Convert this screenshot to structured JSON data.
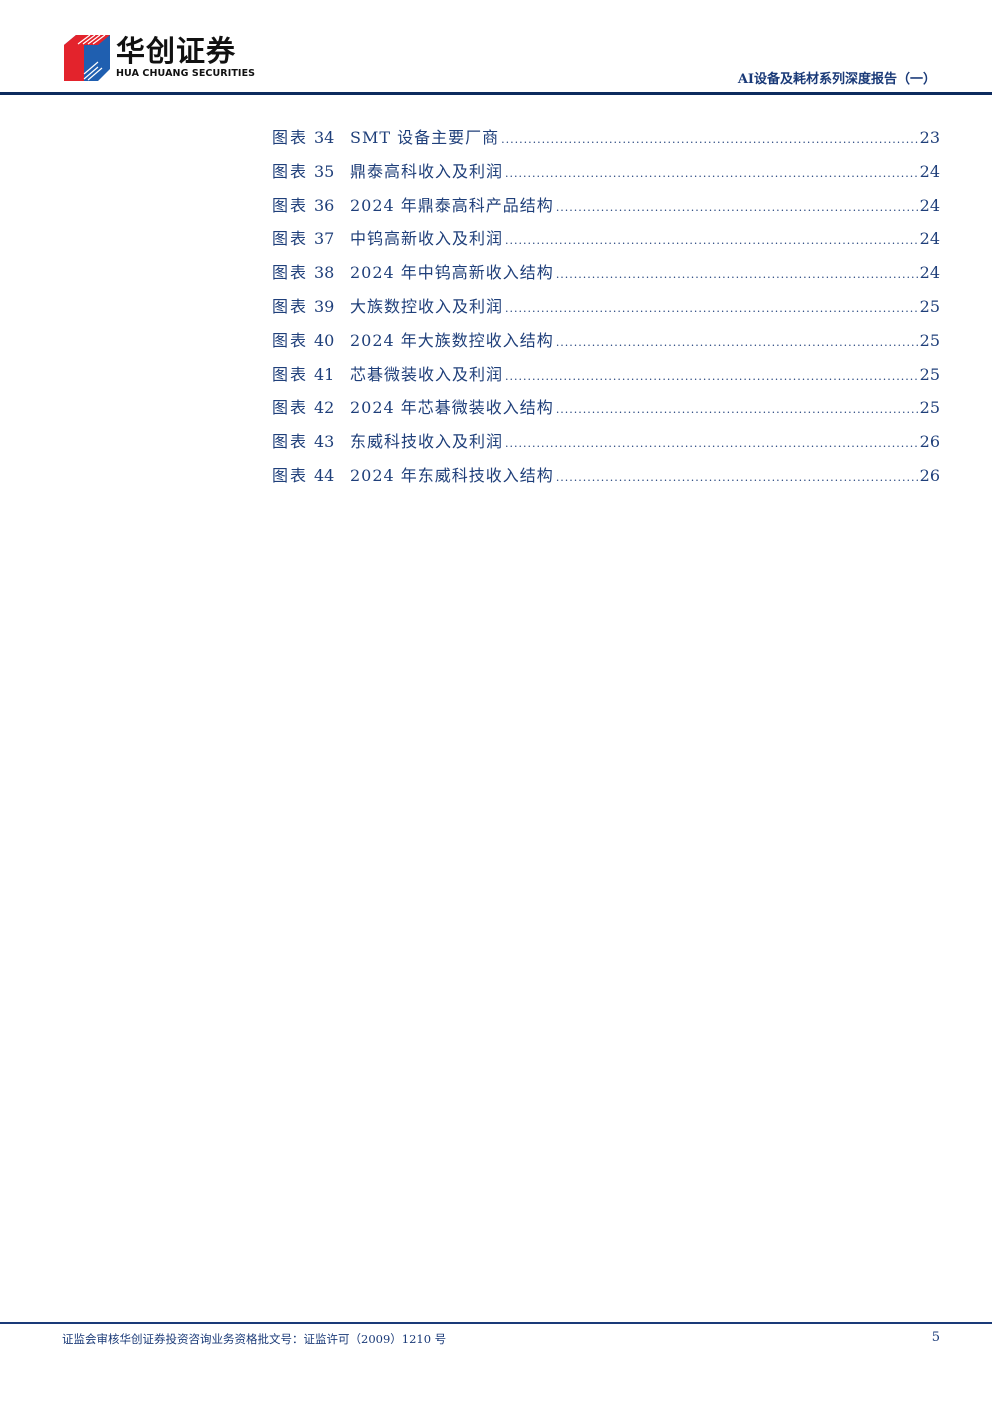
{
  "header": {
    "brand_cn": "华创证券",
    "brand_en": "HUA CHUANG SECURITIES",
    "report_title": "AI设备及耗材系列深度报告（一）",
    "colors": {
      "primary": "#0d2b5e",
      "text": "#1f3f7a",
      "logo_red": "#e3232c",
      "logo_blue": "#1f5fb0"
    }
  },
  "toc": [
    {
      "label": "图表",
      "num": "34",
      "title": "SMT 设备主要厂商",
      "page": "23"
    },
    {
      "label": "图表",
      "num": "35",
      "title": "鼎泰高科收入及利润",
      "page": "24"
    },
    {
      "label": "图表",
      "num": "36",
      "title": "2024 年鼎泰高科产品结构",
      "page": "24"
    },
    {
      "label": "图表",
      "num": "37",
      "title": "中钨高新收入及利润",
      "page": "24"
    },
    {
      "label": "图表",
      "num": "38",
      "title": "2024 年中钨高新收入结构",
      "page": "24"
    },
    {
      "label": "图表",
      "num": "39",
      "title": "大族数控收入及利润",
      "page": "25"
    },
    {
      "label": "图表",
      "num": "40",
      "title": "2024 年大族数控收入结构",
      "page": "25"
    },
    {
      "label": "图表",
      "num": "41",
      "title": "芯碁微装收入及利润",
      "page": "25"
    },
    {
      "label": "图表",
      "num": "42",
      "title": "2024 年芯碁微装收入结构",
      "page": "25"
    },
    {
      "label": "图表",
      "num": "43",
      "title": "东威科技收入及利润",
      "page": "26"
    },
    {
      "label": "图表",
      "num": "44",
      "title": "2024 年东威科技收入结构",
      "page": "26"
    }
  ],
  "footer": {
    "license": "证监会审核华创证券投资咨询业务资格批文号：证监许可（2009）1210 号",
    "page_number": "5"
  }
}
